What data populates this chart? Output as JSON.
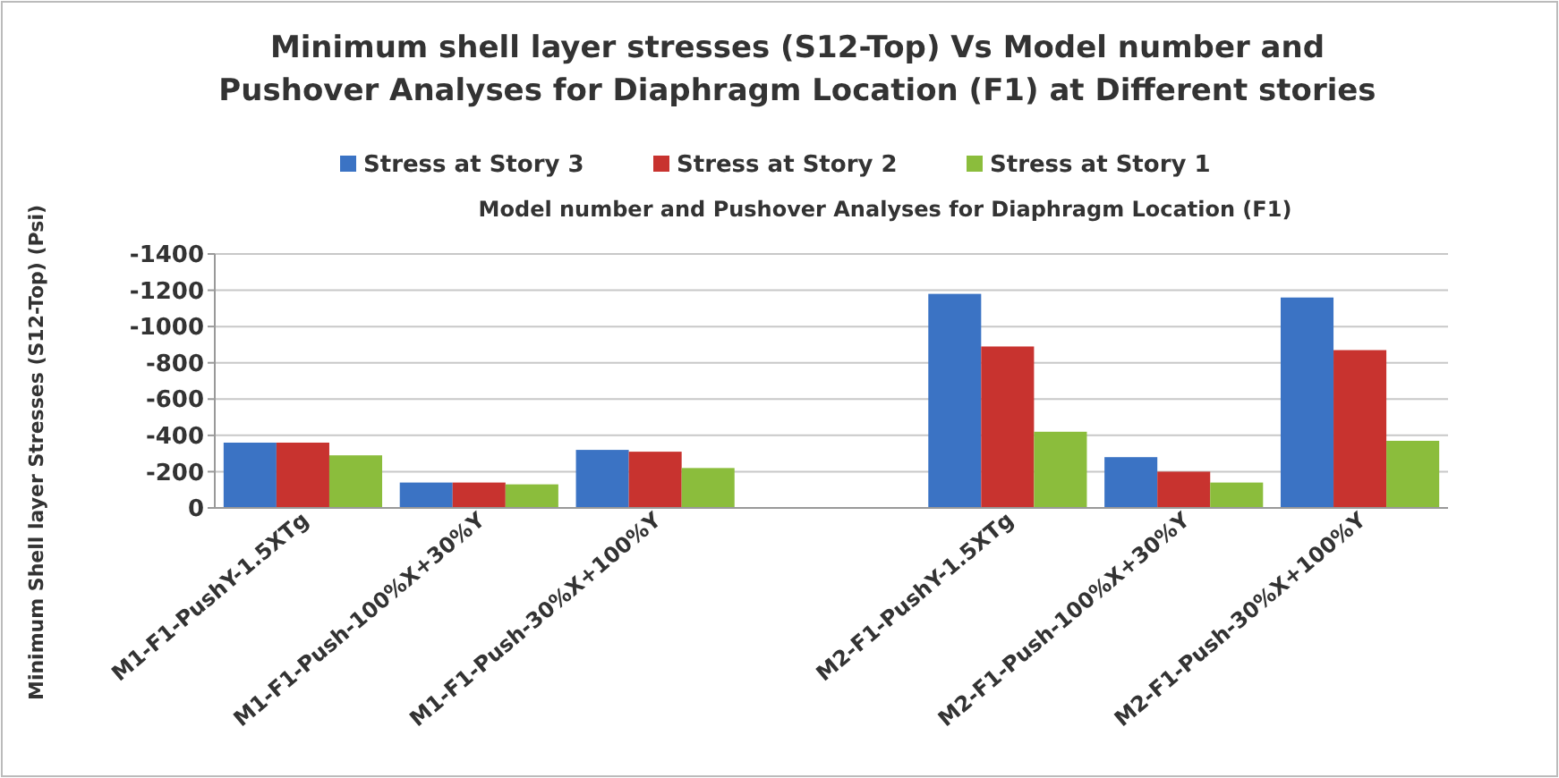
{
  "chart_data": {
    "type": "bar",
    "title": "Minimum shell layer stresses (S12-Top) Vs Model number and\nPushover Analyses for Diaphragm Location (F1) at Different stories",
    "xlabel": "Model number and Pushover Analyses for Diaphragm Location (F1)",
    "ylabel": "Minimum  Shell layer Stresses (S12-Top) (Psi)",
    "categories": [
      "M1-F1-PushY-1.5XTg",
      "M1-F1-Push-100%X+30%Y",
      "M1-F1-Push-30%X+100%Y",
      null,
      "M2-F1-PushY-1.5XTg",
      "M2-F1-Push-100%X+30%Y",
      "M2-F1-Push-30%X+100%Y"
    ],
    "series": [
      {
        "name": "Stress at Story 3",
        "color": "#3b73c4",
        "values": [
          -360,
          -140,
          -320,
          null,
          -1180,
          -280,
          -1160
        ]
      },
      {
        "name": "Stress at Story 2",
        "color": "#c8332f",
        "values": [
          -360,
          -140,
          -310,
          null,
          -890,
          -200,
          -870
        ]
      },
      {
        "name": "Stress at Story 1",
        "color": "#8bbd3c",
        "values": [
          -290,
          -130,
          -220,
          null,
          -420,
          -140,
          -370
        ]
      }
    ],
    "ylim": [
      0,
      -1400
    ],
    "yticks": [
      0,
      -200,
      -400,
      -600,
      -800,
      -1000,
      -1200,
      -1400
    ],
    "grid": "y",
    "legend": "top"
  }
}
